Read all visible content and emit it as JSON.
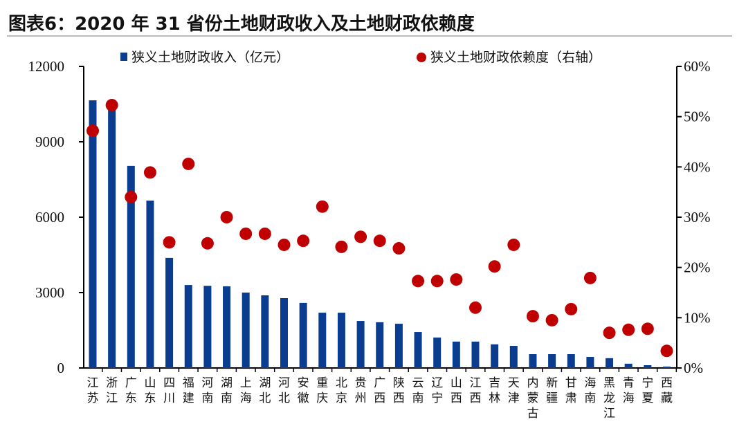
{
  "title": "图表6：2020 年 31 省份土地财政收入及土地财政依赖度",
  "chart_data": {
    "type": "bar",
    "title": "图表6：2020 年 31 省份土地财政收入及土地财政依赖度",
    "categories": [
      "江苏",
      "浙江",
      "广东",
      "山东",
      "四川",
      "福建",
      "河南",
      "湖南",
      "上海",
      "湖北",
      "河北",
      "安徽",
      "重庆",
      "北京",
      "贵州",
      "广西",
      "陕西",
      "云南",
      "辽宁",
      "山西",
      "江西",
      "吉林",
      "天津",
      "内蒙古",
      "新疆",
      "甘肃",
      "海南",
      "黑龙江",
      "青海",
      "宁夏",
      "西藏"
    ],
    "series": [
      {
        "name": "狭义土地财政收入（亿元）",
        "type": "bar",
        "axis": "left",
        "color": "#0a3d8f",
        "values": [
          10650,
          10320,
          8040,
          6660,
          4380,
          3300,
          3270,
          3250,
          3000,
          2890,
          2780,
          2590,
          2200,
          2200,
          1870,
          1820,
          1760,
          1430,
          1210,
          1050,
          1050,
          940,
          880,
          550,
          550,
          550,
          440,
          390,
          170,
          110,
          55
        ]
      },
      {
        "name": "狭义土地财政依赖度（右轴）",
        "type": "scatter",
        "axis": "right",
        "color": "#c00000",
        "values": [
          47.2,
          52.3,
          34.0,
          38.9,
          25.0,
          40.6,
          24.8,
          30.0,
          26.7,
          26.7,
          24.5,
          25.3,
          32.1,
          24.1,
          26.1,
          25.3,
          23.8,
          17.3,
          17.3,
          17.6,
          12.0,
          20.2,
          24.5,
          10.3,
          9.5,
          11.7,
          17.9,
          7.0,
          7.6,
          7.8,
          3.4
        ]
      }
    ],
    "y_left": {
      "range": [
        0,
        12000
      ],
      "ticks": [
        "0",
        "3000",
        "6000",
        "9000",
        "12000"
      ]
    },
    "y_right": {
      "range": [
        0,
        60
      ],
      "unit": "%",
      "ticks": [
        "0%",
        "10%",
        "20%",
        "30%",
        "40%",
        "50%",
        "60%"
      ]
    },
    "legend": "top",
    "grid": false
  }
}
